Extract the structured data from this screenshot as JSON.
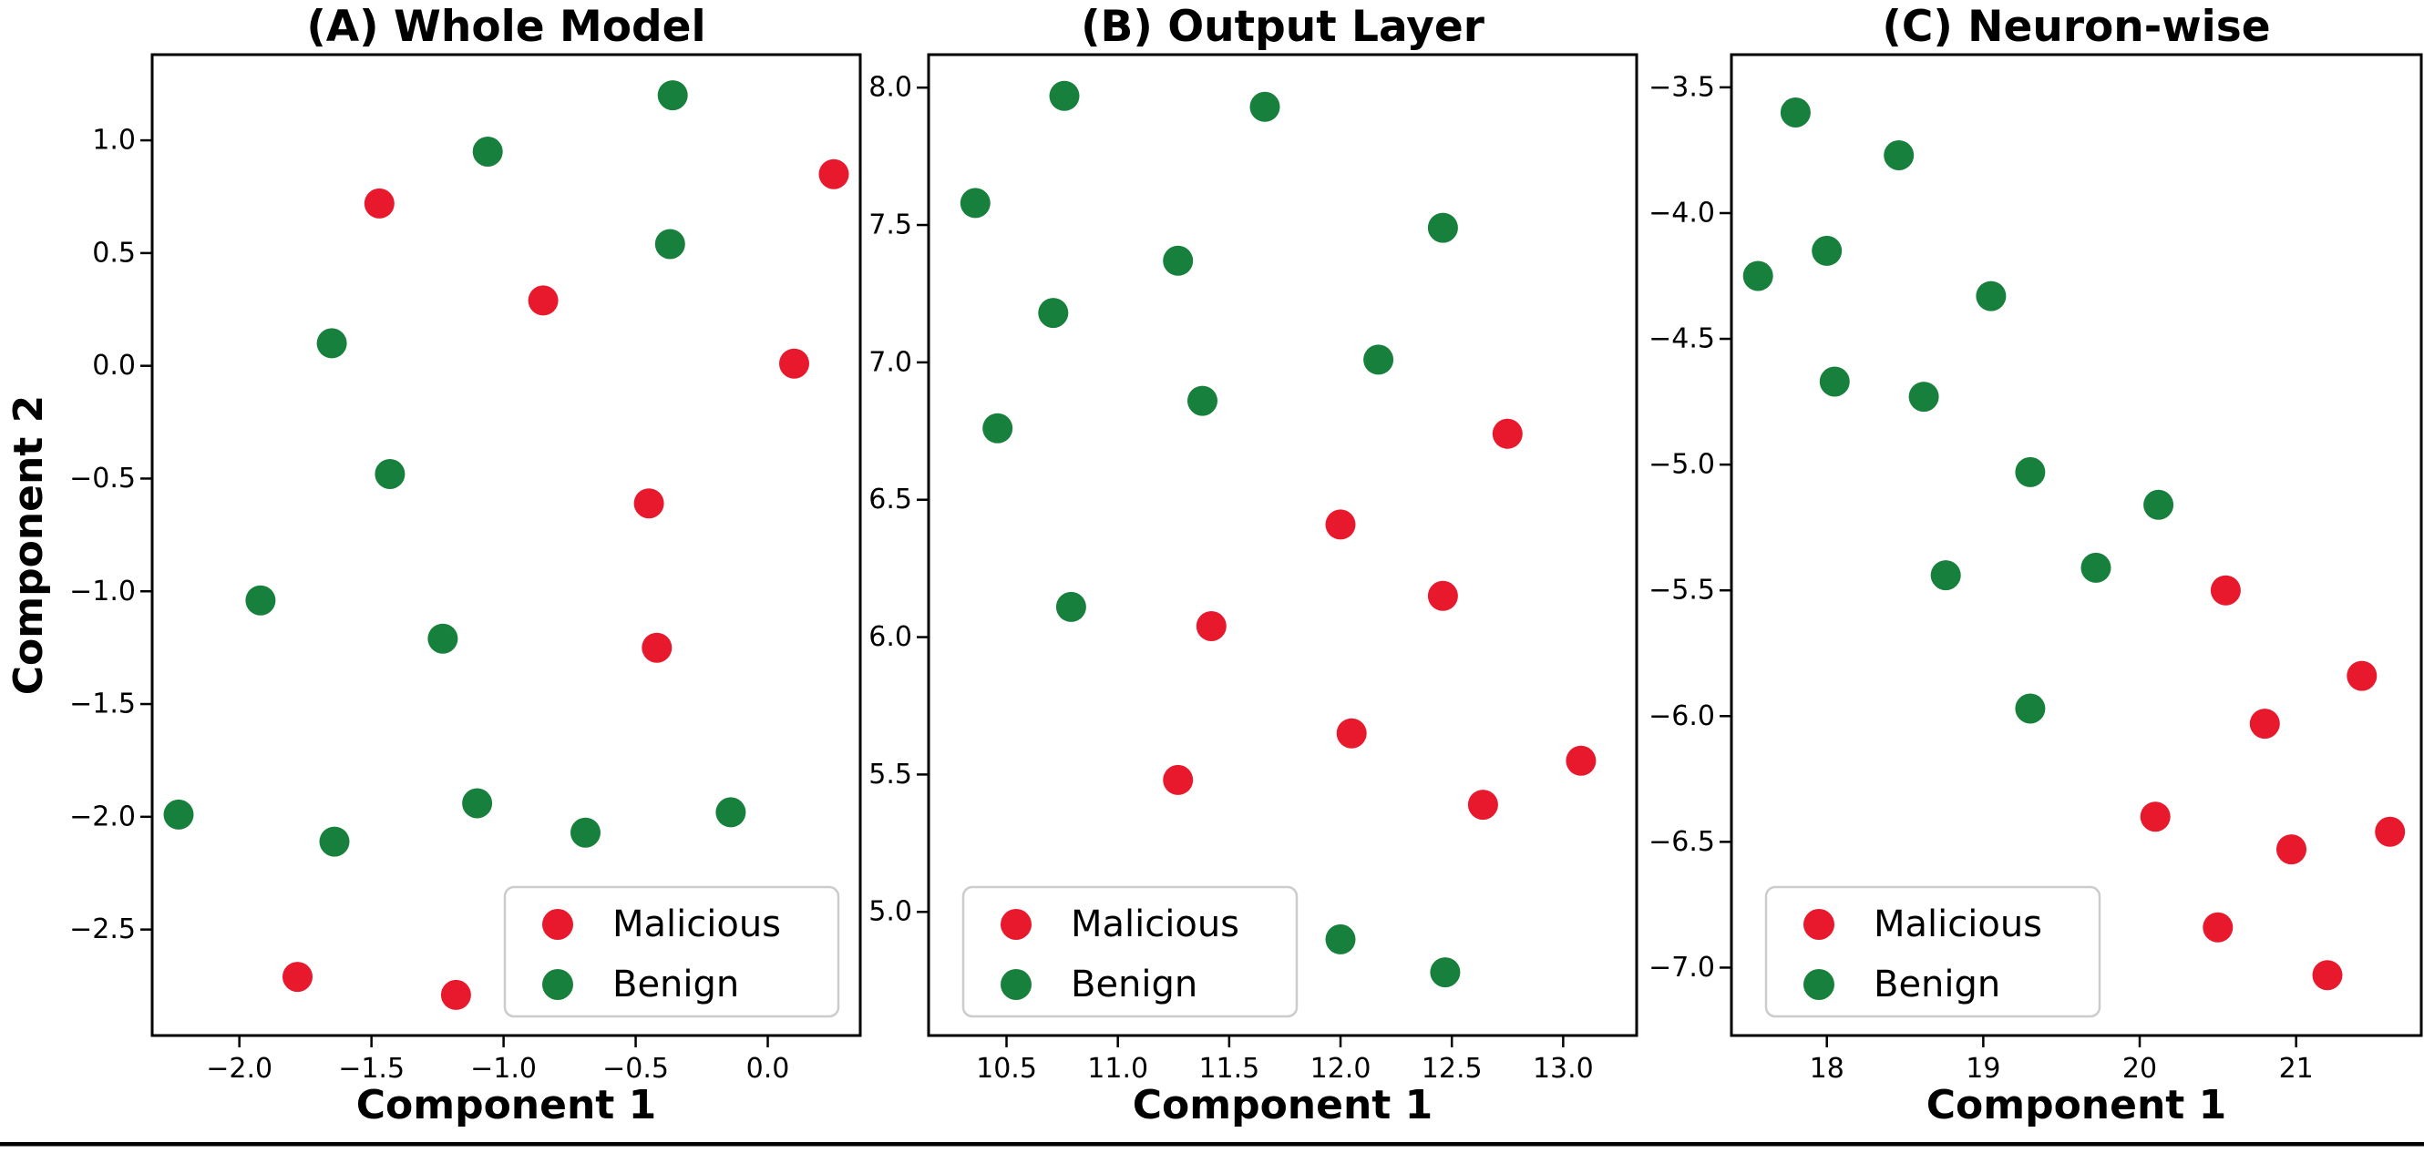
{
  "figure": {
    "background": "#ffffff",
    "bottom_rule_color": "#000000",
    "axis_color": "#000000",
    "legend_border_color": "#cccccc",
    "malicious_color": "#e8192c",
    "benign_color": "#17803c"
  },
  "chart_data": [
    {
      "type": "scatter",
      "title": "(A) Whole Model",
      "xlabel": "Component 1",
      "ylabel": "Component 2",
      "xlim": [
        -2.33,
        0.35
      ],
      "ylim": [
        -2.97,
        1.38
      ],
      "xticks": [
        -2.0,
        -1.5,
        -1.0,
        -0.5,
        0.0
      ],
      "xtick_labels": [
        "−2.0",
        "−1.5",
        "−1.0",
        "−0.5",
        "0.0"
      ],
      "yticks": [
        1.0,
        0.5,
        0.0,
        -0.5,
        -1.0,
        -1.5,
        -2.0,
        -2.5
      ],
      "ytick_labels": [
        "1.0",
        "0.5",
        "0.0",
        "−0.5",
        "−1.0",
        "−1.5",
        "−2.0",
        "−2.5"
      ],
      "grid": false,
      "legend": {
        "position": "lower-right",
        "entries": [
          "Malicious",
          "Benign"
        ]
      },
      "series": [
        {
          "name": "Malicious",
          "color": "#e8192c",
          "points": [
            [
              -1.47,
              0.72
            ],
            [
              0.25,
              0.85
            ],
            [
              -0.85,
              0.29
            ],
            [
              0.1,
              0.01
            ],
            [
              -0.45,
              -0.61
            ],
            [
              -0.42,
              -1.25
            ],
            [
              -1.78,
              -2.71
            ],
            [
              -1.18,
              -2.79
            ]
          ]
        },
        {
          "name": "Benign",
          "color": "#17803c",
          "points": [
            [
              -0.36,
              1.2
            ],
            [
              -1.06,
              0.95
            ],
            [
              -0.37,
              0.54
            ],
            [
              -1.65,
              0.1
            ],
            [
              -1.43,
              -0.48
            ],
            [
              -1.92,
              -1.04
            ],
            [
              -1.23,
              -1.21
            ],
            [
              -2.23,
              -1.99
            ],
            [
              -1.1,
              -1.94
            ],
            [
              -1.64,
              -2.11
            ],
            [
              -0.69,
              -2.07
            ],
            [
              -0.14,
              -1.98
            ]
          ]
        }
      ]
    },
    {
      "type": "scatter",
      "title": "(B) Output Layer",
      "xlabel": "Component 1",
      "ylabel": null,
      "xlim": [
        10.15,
        13.33
      ],
      "ylim": [
        4.55,
        8.12
      ],
      "xticks": [
        10.5,
        11.0,
        11.5,
        12.0,
        12.5,
        13.0
      ],
      "xtick_labels": [
        "10.5",
        "11.0",
        "11.5",
        "12.0",
        "12.5",
        "13.0"
      ],
      "yticks": [
        5.0,
        5.5,
        6.0,
        6.5,
        7.0,
        7.5,
        8.0
      ],
      "ytick_labels": [
        "5.0",
        "5.5",
        "6.0",
        "6.5",
        "7.0",
        "7.5",
        "8.0"
      ],
      "grid": false,
      "legend": {
        "position": "lower-left",
        "entries": [
          "Malicious",
          "Benign"
        ]
      },
      "series": [
        {
          "name": "Malicious",
          "color": "#e8192c",
          "points": [
            [
              12.75,
              6.74
            ],
            [
              12.0,
              6.41
            ],
            [
              12.46,
              6.15
            ],
            [
              11.42,
              6.04
            ],
            [
              12.05,
              5.65
            ],
            [
              13.08,
              5.55
            ],
            [
              11.27,
              5.48
            ],
            [
              12.64,
              5.39
            ]
          ]
        },
        {
          "name": "Benign",
          "color": "#17803c",
          "points": [
            [
              10.76,
              7.97
            ],
            [
              11.66,
              7.93
            ],
            [
              10.36,
              7.58
            ],
            [
              12.46,
              7.49
            ],
            [
              11.27,
              7.37
            ],
            [
              10.71,
              7.18
            ],
            [
              12.17,
              7.01
            ],
            [
              11.38,
              6.86
            ],
            [
              10.46,
              6.76
            ],
            [
              10.79,
              6.11
            ],
            [
              12.0,
              4.9
            ],
            [
              12.47,
              4.78
            ]
          ]
        }
      ]
    },
    {
      "type": "scatter",
      "title": "(C) Neuron-wise",
      "xlabel": "Component 1",
      "ylabel": null,
      "xlim": [
        17.39,
        21.8
      ],
      "ylim": [
        -7.27,
        -3.37
      ],
      "xticks": [
        18,
        19,
        20,
        21
      ],
      "xtick_labels": [
        "18",
        "19",
        "20",
        "21"
      ],
      "yticks": [
        -3.5,
        -4.0,
        -4.5,
        -5.0,
        -5.5,
        -6.0,
        -6.5,
        -7.0
      ],
      "ytick_labels": [
        "−3.5",
        "−4.0",
        "−4.5",
        "−5.0",
        "−5.5",
        "−6.0",
        "−6.5",
        "−7.0"
      ],
      "grid": false,
      "legend": {
        "position": "lower-left",
        "entries": [
          "Malicious",
          "Benign"
        ]
      },
      "series": [
        {
          "name": "Malicious",
          "color": "#e8192c",
          "points": [
            [
              20.55,
              -5.5
            ],
            [
              21.42,
              -5.84
            ],
            [
              20.8,
              -6.03
            ],
            [
              20.1,
              -6.4
            ],
            [
              21.6,
              -6.46
            ],
            [
              20.97,
              -6.53
            ],
            [
              20.5,
              -6.84
            ],
            [
              21.2,
              -7.03
            ]
          ]
        },
        {
          "name": "Benign",
          "color": "#17803c",
          "points": [
            [
              17.8,
              -3.6
            ],
            [
              18.46,
              -3.77
            ],
            [
              18.0,
              -4.15
            ],
            [
              17.56,
              -4.25
            ],
            [
              19.05,
              -4.33
            ],
            [
              18.05,
              -4.67
            ],
            [
              18.62,
              -4.73
            ],
            [
              19.3,
              -5.03
            ],
            [
              20.12,
              -5.16
            ],
            [
              18.76,
              -5.44
            ],
            [
              19.72,
              -5.41
            ],
            [
              19.3,
              -5.97
            ]
          ]
        }
      ]
    }
  ]
}
